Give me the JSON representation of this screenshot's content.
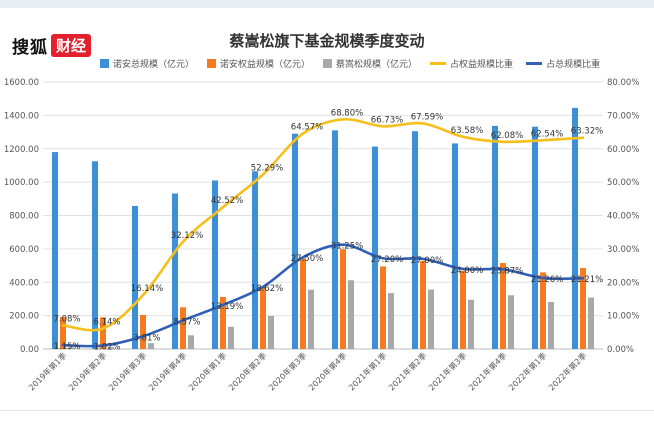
{
  "logo": {
    "brand": "搜狐",
    "badge": "财经"
  },
  "colors": {
    "total": "#3d8fd6",
    "equity": "#f47b20",
    "cai": "#a8a8a8",
    "equity_ratio": "#f6bf1b",
    "total_ratio": "#2f5fb6",
    "grid": "#e2e2e2",
    "axis_text": "#555555",
    "topbar": "#e8edf3",
    "footline": "#e6e6e6"
  },
  "chart_data": {
    "type": "bar",
    "title": "蔡嵩松旗下基金规模季度变动",
    "categories": [
      "2019年第1季",
      "2019年第2季",
      "2019年第3季",
      "2019年第4季",
      "2020年第1季",
      "2020年第2季",
      "2020年第3季",
      "2020年第4季",
      "2021年第1季",
      "2021年第2季",
      "2021年第3季",
      "2021年第4季",
      "2022年第1季",
      "2022年第2季"
    ],
    "bar_series": [
      {
        "name": "诺安总规模（亿元）",
        "color": "#3d8fd6",
        "values": [
          1180,
          1125,
          857,
          932,
          1010,
          1065,
          1290,
          1310,
          1213,
          1305,
          1232,
          1337,
          1332,
          1445
        ]
      },
      {
        "name": "诺安权益规模（亿元）",
        "color": "#f47b20",
        "values": [
          192,
          190,
          204,
          250,
          312,
          372,
          545,
          598,
          495,
          528,
          468,
          515,
          459,
          485
        ]
      },
      {
        "name": "蔡嵩松规模（亿元）",
        "color": "#a8a8a8",
        "values": [
          10,
          12,
          35,
          82,
          133,
          198,
          355,
          412,
          335,
          356,
          295,
          322,
          282,
          308
        ]
      }
    ],
    "line_series": [
      {
        "name": "占权益规模比重",
        "color": "#f6bf1b",
        "values": [
          7.08,
          6.14,
          16.14,
          32.12,
          42.52,
          52.29,
          64.57,
          68.8,
          66.73,
          67.59,
          63.58,
          62.08,
          62.54,
          63.32
        ],
        "labels": [
          "7.08%",
          "6.14%",
          "16.14%",
          "32.12%",
          "42.52%",
          "52.29%",
          "64.57%",
          "68.80%",
          "66.73%",
          "67.59%",
          "63.58%",
          "62.08%",
          "62.54%",
          "63.32%"
        ]
      },
      {
        "name": "占总规模比重",
        "color": "#2f5fb6",
        "values": [
          1.15,
          1.02,
          3.81,
          8.57,
          13.19,
          18.62,
          27.5,
          31.25,
          27.2,
          27.0,
          24.0,
          23.87,
          21.26,
          21.21
        ],
        "labels": [
          "1.15%",
          "1.02%",
          "3.81%",
          "8.57%",
          "13.19%",
          "18.62%",
          "27.50%",
          "31.25%",
          "27.20%",
          "27.00%",
          "24.00%",
          "23.87%",
          "21.26%",
          "21.21%"
        ]
      }
    ],
    "y_left": {
      "min": 0,
      "max": 1600,
      "ticks": [
        "0.00",
        "200.00",
        "400.00",
        "600.00",
        "800.00",
        "1000.00",
        "1200.00",
        "1400.00",
        "1600.00"
      ]
    },
    "y_right": {
      "min": 0,
      "max": 80,
      "ticks": [
        "0.00%",
        "10.00%",
        "20.00%",
        "30.00%",
        "40.00%",
        "50.00%",
        "60.00%",
        "70.00%",
        "80.00%"
      ]
    },
    "grid": true,
    "legend_position": "top"
  }
}
